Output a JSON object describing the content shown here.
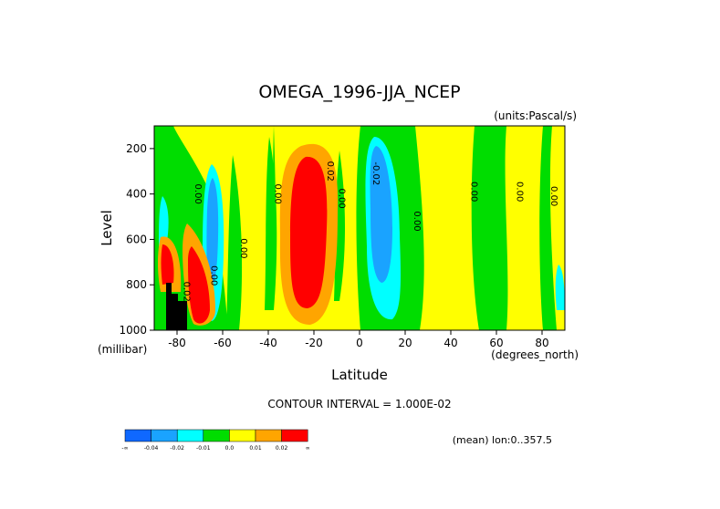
{
  "chart_data": {
    "type": "heatmap",
    "title": "OMEGA_1996-JJA_NCEP",
    "units": "(units:Pascal/s)",
    "xlabel": "Latitude",
    "ylabel": "Level",
    "x_unit": "(degrees_north)",
    "y_unit": "(millibar)",
    "xlim": [
      -90,
      90
    ],
    "ylim": [
      1000,
      100
    ],
    "x_ticks": [
      "-80",
      "-60",
      "-40",
      "-20",
      "0",
      "20",
      "40",
      "60",
      "80"
    ],
    "y_ticks": [
      "200",
      "400",
      "600",
      "800",
      "1000"
    ],
    "contour_interval_text": "CONTOUR INTERVAL = 1.000E-02",
    "mean_note": "(mean) lon:0..357.5",
    "colorbar": {
      "labels": [
        "-∞",
        "-0.04",
        "-0.02",
        "-0.01",
        "0.0",
        "0.01",
        "0.02",
        "∞"
      ],
      "colors": [
        "#0f68ff",
        "#1aa3ff",
        "#00ffff",
        "#00dd00",
        "#ffff00",
        "#ffa500",
        "#ff0000"
      ]
    },
    "contour_labels": [
      {
        "text": "0.00",
        "lat": -72,
        "level": 400
      },
      {
        "text": "0.00",
        "lat": -52,
        "level": 640
      },
      {
        "text": "0.00",
        "lat": -37,
        "level": 400
      },
      {
        "text": "0.02",
        "lat": -14,
        "level": 300
      },
      {
        "text": "0.00",
        "lat": -9,
        "level": 420
      },
      {
        "text": "-0.02",
        "lat": 6,
        "level": 310
      },
      {
        "text": "0.00",
        "lat": 24,
        "level": 520
      },
      {
        "text": "0.00",
        "lat": 49,
        "level": 390
      },
      {
        "text": "0.00",
        "lat": 69,
        "level": 390
      },
      {
        "text": "0.00",
        "lat": 84,
        "level": 410
      },
      {
        "text": "0.02",
        "lat": -77,
        "level": 830
      },
      {
        "text": "0.00",
        "lat": -65,
        "level": 760
      }
    ],
    "regions_description_levels": "OMEGA field shown with filled contours by latitude and pressure level"
  }
}
